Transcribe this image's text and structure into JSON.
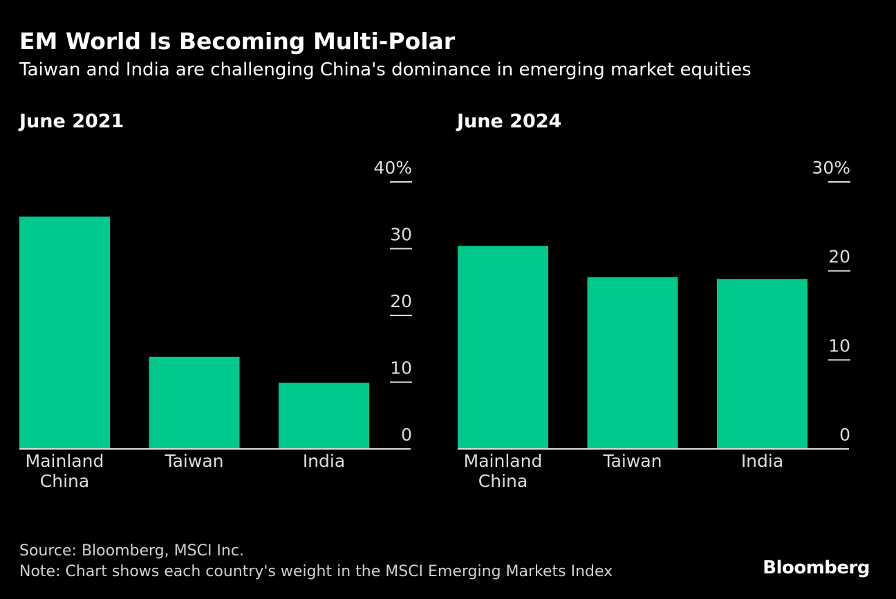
{
  "title": "EM World Is Becoming Multi-Polar",
  "subtitle": "Taiwan and India are challenging China's dominance in emerging market equities",
  "source": "Source: Bloomberg, MSCI Inc.",
  "note": "Note: Chart shows each country's weight in the MSCI Emerging Markets Index",
  "logo": "Bloomberg",
  "colors": {
    "bar": "#00c98d",
    "background": "#000000",
    "axis": "#dddddd"
  },
  "chart_data": [
    {
      "type": "bar",
      "title": "June 2021",
      "categories": [
        [
          "Mainland",
          "China"
        ],
        [
          "Taiwan"
        ],
        [
          "India"
        ]
      ],
      "values": [
        34.8,
        13.8,
        9.9
      ],
      "ylim": [
        0,
        40
      ],
      "yticks": [
        0,
        10,
        20,
        30,
        40
      ],
      "ytick_labels": [
        "0",
        "10",
        "20",
        "30",
        "40%"
      ],
      "grid": false,
      "axis_side": "right"
    },
    {
      "type": "bar",
      "title": "June 2024",
      "categories": [
        [
          "Mainland",
          "China"
        ],
        [
          "Taiwan"
        ],
        [
          "India"
        ]
      ],
      "values": [
        22.8,
        19.3,
        19.1
      ],
      "ylim": [
        0,
        30
      ],
      "yticks": [
        0,
        10,
        20,
        30
      ],
      "ytick_labels": [
        "0",
        "10",
        "20",
        "30%"
      ],
      "grid": false,
      "axis_side": "right"
    }
  ]
}
